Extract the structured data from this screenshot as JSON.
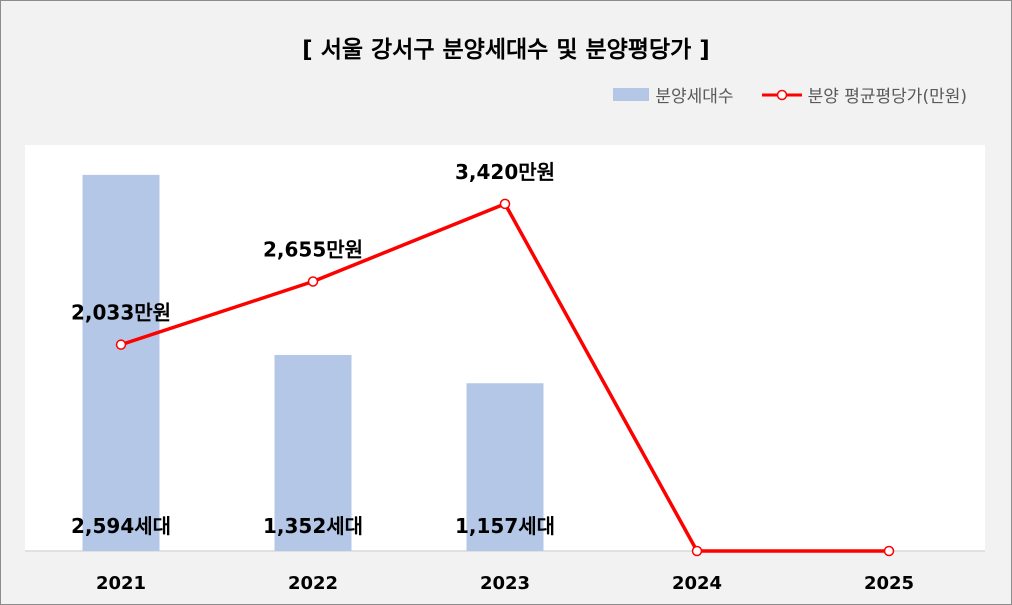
{
  "title": "[ 서울 강서구 분양세대수 및 분양평당가 ]",
  "legend": {
    "bar_label": "분양세대수",
    "line_label": "분양 평균평당가(만원)"
  },
  "colors": {
    "bar": "#b4c7e7",
    "line": "#ff0000",
    "plot_background": "#ffffff",
    "page_background": "#f2f2f2"
  },
  "chart_data": {
    "type": "bar+line",
    "title": "[ 서울 강서구 분양세대수 및 분양평당가 ]",
    "categories": [
      "2021",
      "2022",
      "2023",
      "2024",
      "2025"
    ],
    "series": [
      {
        "name": "분양세대수",
        "type": "bar",
        "values": [
          2594,
          1352,
          1157,
          0,
          0
        ],
        "labels": [
          "2,594세대",
          "1,352세대",
          "1,157세대",
          "",
          ""
        ]
      },
      {
        "name": "분양 평균평당가(만원)",
        "type": "line",
        "values": [
          2033,
          2655,
          3420,
          0,
          0
        ],
        "labels": [
          "2,033만원",
          "2,655만원",
          "3,420만원",
          "",
          ""
        ]
      }
    ],
    "bar_axis_max": 2800,
    "line_axis_max": 4000,
    "legend_position": "top-right",
    "grid": false
  }
}
